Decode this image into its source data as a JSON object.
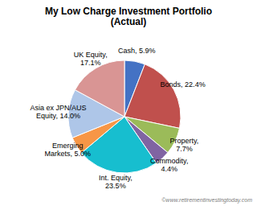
{
  "chart_data": {
    "type": "pie",
    "title": "My Low Charge Investment Portfolio\n(Actual)",
    "categories": [
      "Cash, 5.9%",
      "Bonds, 22.4%",
      "Property,\n7.7%",
      "Commodity,\n4.4%",
      "Int. Equity,\n23.5%",
      "Emerging\nMarkets, 5.0%",
      "Asia ex JPN/AUS\nEquity, 14.0%",
      "UK Equity,\n17.1%"
    ],
    "values": [
      5.9,
      22.4,
      7.7,
      4.4,
      23.5,
      5.0,
      14.0,
      17.1
    ],
    "colors": [
      "#4472C4",
      "#C0504D",
      "#9BBB59",
      "#8064A2",
      "#17BECF",
      "#F79646",
      "#AEC6E8",
      "#D99594"
    ],
    "annotations": [
      "©www.retirementinvestingtoday.com"
    ]
  }
}
